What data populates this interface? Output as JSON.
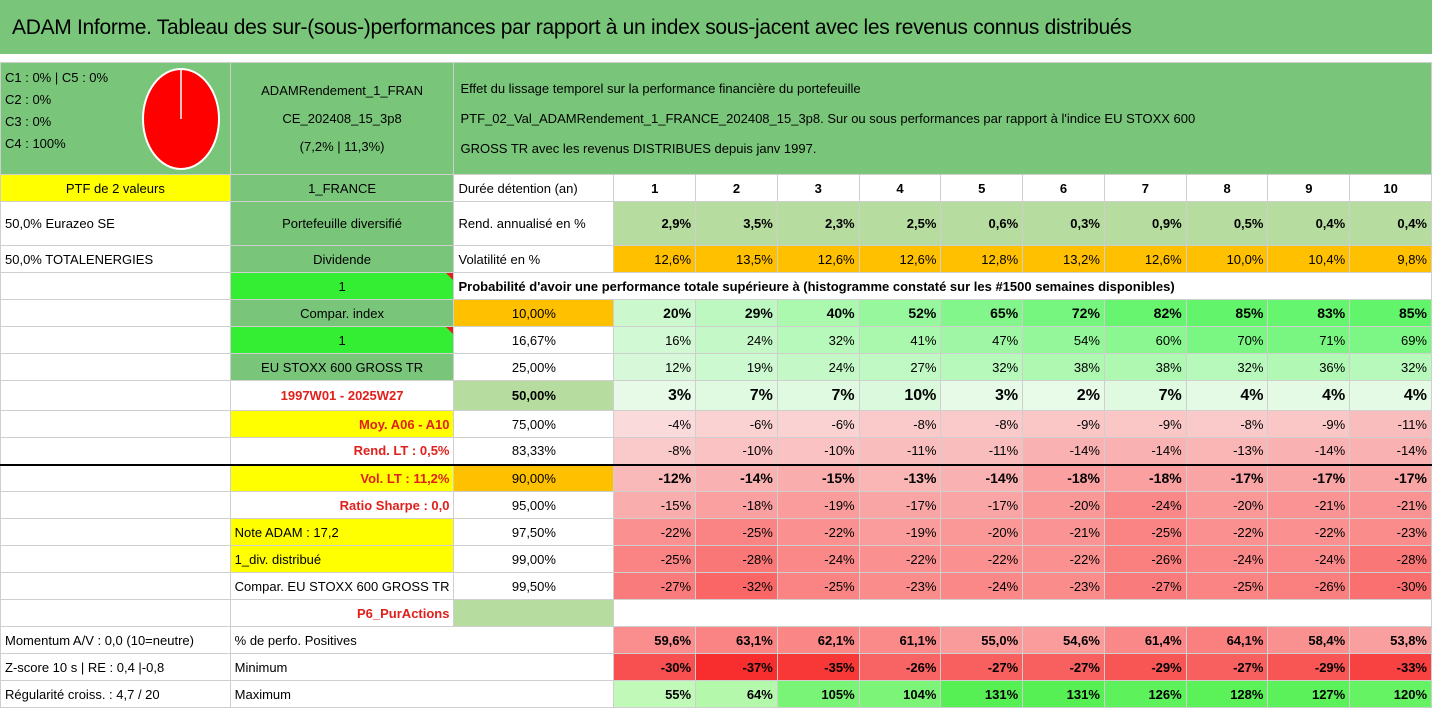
{
  "title": "ADAM Informe. Tableau des sur-(sous-)performances par rapport à un index sous-jacent avec les revenus connus distribués",
  "composition": {
    "lines": [
      "C1 : 0% | C5 : 0%",
      "C2 : 0%",
      "C3 : 0%",
      "C4 : 100%"
    ],
    "pie_color": "#ff0000"
  },
  "portfolio": {
    "name_line1": "ADAMRendement_1_FRAN",
    "name_line2": "CE_202408_15_3p8",
    "name_line3": "(7,2% | 11,3%)"
  },
  "description": {
    "line1": "Effet du lissage temporel sur la performance financière du portefeuille",
    "line2": "PTF_02_Val_ADAMRendement_1_FRANCE_202408_15_3p8. Sur ou sous performances par rapport à l'indice EU STOXX 600",
    "line3": "GROSS TR avec les revenus DISTRIBUES depuis janv 1997."
  },
  "col_a": [
    "PTF de 2 valeurs",
    "50,0% Eurazeo SE",
    "50,0% TOTALENERGIES",
    "",
    "",
    "",
    "",
    "",
    "",
    "",
    "",
    "",
    "",
    "",
    "",
    "",
    "",
    "Momentum A/V : 0,0 (10=neutre)",
    "Z-score 10 s | RE : 0,4 |-0,8",
    "Régularité croiss. : 4,7 / 20"
  ],
  "col_b": [
    "1_FRANCE",
    "Portefeuille diversifié",
    "Dividende",
    "1",
    "Compar. index",
    "1",
    "EU STOXX 600 GROSS TR",
    "1997W01 - 2025W27",
    "Moy. A06 - A10",
    "Rend. LT : 0,5%",
    "Vol. LT : 11,2%",
    "Ratio Sharpe : 0,0",
    "Note ADAM : 17,2",
    "1_div. distribué",
    "Compar. EU STOXX 600 GROSS TR",
    "P6_PurActions"
  ],
  "table": {
    "years_label": "Durée détention (an)",
    "years": [
      "1",
      "2",
      "3",
      "4",
      "5",
      "6",
      "7",
      "8",
      "9",
      "10"
    ],
    "rend_label": "Rend. annualisé en %",
    "rend": [
      "2,9%",
      "3,5%",
      "2,3%",
      "2,5%",
      "0,6%",
      "0,3%",
      "0,9%",
      "0,5%",
      "0,4%",
      "0,4%"
    ],
    "vol_label": "Volatilité en %",
    "vol": [
      "12,6%",
      "13,5%",
      "12,6%",
      "12,6%",
      "12,8%",
      "13,2%",
      "12,6%",
      "10,0%",
      "10,4%",
      "9,8%"
    ],
    "prob_label": "Probabilité d'avoir une performance totale supérieure à (histogramme constaté sur les #1500 semaines disponibles)",
    "thresholds": [
      "10,00%",
      "16,67%",
      "25,00%",
      "50,00%",
      "75,00%",
      "83,33%",
      "90,00%",
      "95,00%",
      "97,50%",
      "99,00%",
      "99,50%"
    ],
    "rows": [
      [
        "20%",
        "29%",
        "40%",
        "52%",
        "65%",
        "72%",
        "82%",
        "85%",
        "83%",
        "85%"
      ],
      [
        "16%",
        "24%",
        "32%",
        "41%",
        "47%",
        "54%",
        "60%",
        "70%",
        "71%",
        "69%"
      ],
      [
        "12%",
        "19%",
        "24%",
        "27%",
        "32%",
        "38%",
        "38%",
        "32%",
        "36%",
        "32%"
      ],
      [
        "3%",
        "7%",
        "7%",
        "10%",
        "3%",
        "2%",
        "7%",
        "4%",
        "4%",
        "4%"
      ],
      [
        "-4%",
        "-6%",
        "-6%",
        "-8%",
        "-8%",
        "-9%",
        "-9%",
        "-8%",
        "-9%",
        "-11%"
      ],
      [
        "-8%",
        "-10%",
        "-10%",
        "-11%",
        "-11%",
        "-14%",
        "-14%",
        "-13%",
        "-14%",
        "-14%"
      ],
      [
        "-12%",
        "-14%",
        "-15%",
        "-13%",
        "-14%",
        "-18%",
        "-18%",
        "-17%",
        "-17%",
        "-17%"
      ],
      [
        "-15%",
        "-18%",
        "-19%",
        "-17%",
        "-17%",
        "-20%",
        "-24%",
        "-20%",
        "-21%",
        "-21%"
      ],
      [
        "-22%",
        "-25%",
        "-22%",
        "-19%",
        "-20%",
        "-21%",
        "-25%",
        "-22%",
        "-22%",
        "-23%"
      ],
      [
        "-25%",
        "-28%",
        "-24%",
        "-22%",
        "-22%",
        "-22%",
        "-26%",
        "-24%",
        "-24%",
        "-28%"
      ],
      [
        "-27%",
        "-32%",
        "-25%",
        "-23%",
        "-24%",
        "-23%",
        "-27%",
        "-25%",
        "-26%",
        "-30%"
      ]
    ],
    "pos_label": "% de perfo. Positives",
    "pos": [
      "59,6%",
      "63,1%",
      "62,1%",
      "61,1%",
      "55,0%",
      "54,6%",
      "61,4%",
      "64,1%",
      "58,4%",
      "53,8%"
    ],
    "min_label": "Minimum",
    "min": [
      "-30%",
      "-37%",
      "-35%",
      "-26%",
      "-27%",
      "-27%",
      "-29%",
      "-27%",
      "-29%",
      "-33%"
    ],
    "max_label": "Maximum",
    "max": [
      "55%",
      "64%",
      "105%",
      "104%",
      "131%",
      "131%",
      "126%",
      "128%",
      "127%",
      "120%"
    ]
  }
}
